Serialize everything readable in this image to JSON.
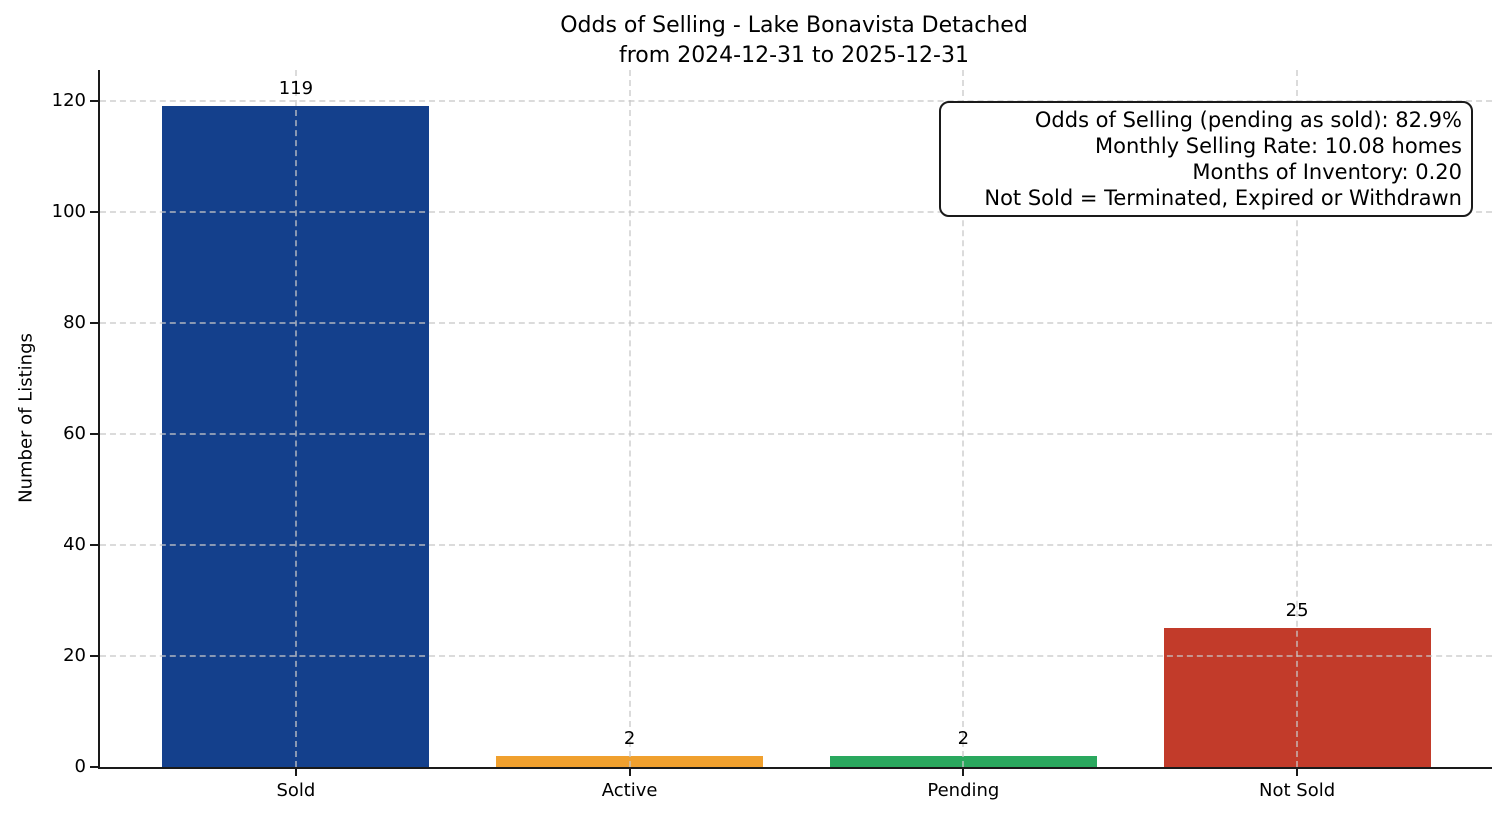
{
  "chart_data": {
    "type": "bar",
    "title": "Odds of Selling - Lake Bonavista Detached\nfrom 2024-12-31 to 2025-12-31",
    "title_lines": [
      "Odds of Selling - Lake Bonavista Detached",
      "from 2024-12-31 to 2025-12-31"
    ],
    "categories": [
      "Sold",
      "Active",
      "Pending",
      "Not Sold"
    ],
    "values": [
      119,
      2,
      2,
      25
    ],
    "bar_labels": [
      "119",
      "2",
      "2",
      "25"
    ],
    "bar_colors": [
      "#14408c",
      "#f0a02e",
      "#2aa85e",
      "#c23b2a"
    ],
    "xlabel": "",
    "ylabel": "Number of Listings",
    "yticks": [
      0,
      20,
      40,
      60,
      80,
      100,
      120
    ],
    "ylim": [
      0,
      125.5
    ],
    "xlim": [
      -0.587,
      3.584
    ],
    "bar_width": 0.8,
    "grid": "dashed, both axes, drawn above bars",
    "legend": "none",
    "annotation": {
      "lines": [
        "Odds of Selling (pending as sold): 82.9%",
        "Monthly Selling Rate: 10.08 homes",
        "Months of Inventory: 0.20",
        "Not Sold = Terminated, Expired or Withdrawn"
      ]
    }
  }
}
